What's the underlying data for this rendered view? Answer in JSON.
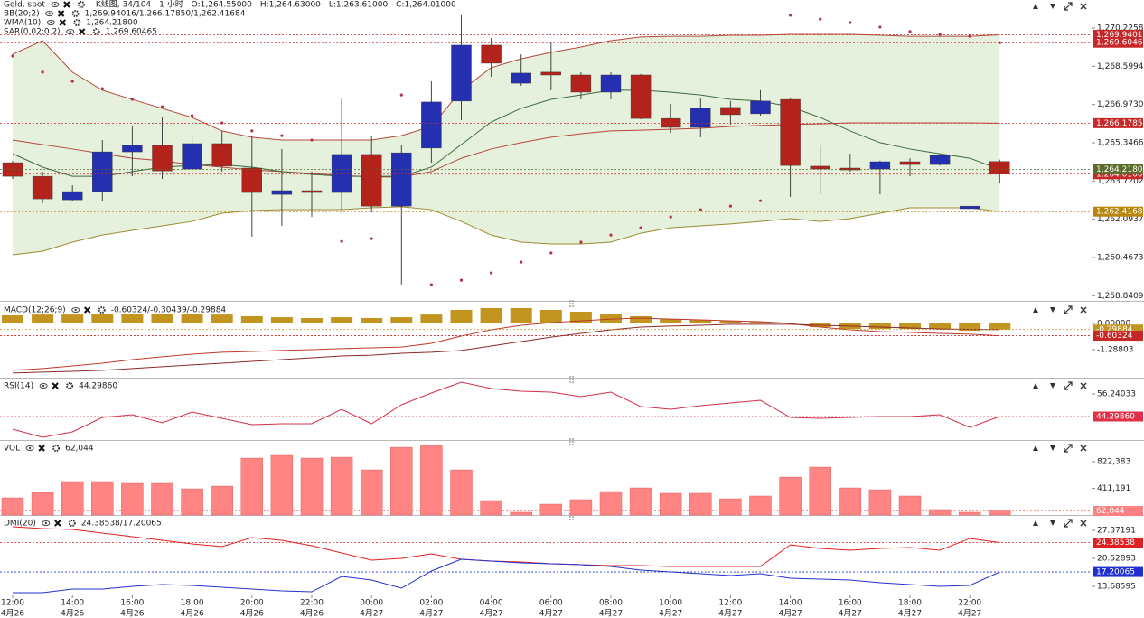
{
  "chart_data": [
    {
      "type": "candlestick",
      "title": "Gold, spot",
      "subtitle": "K线图, 34/104 - 1 小时 - O:1,264.55000 - H:1,264.63000 - L:1,263.61000 - C:1,264.01000",
      "up_color": "#2530b0",
      "down_color": "#b3231c",
      "open": [
        1264.5,
        1263.92,
        1262.92,
        1263.27,
        1264.96,
        1265.23,
        1264.23,
        1265.31,
        1264.27,
        1263.15,
        1263.31,
        1263.23,
        1264.85,
        1262.65,
        1265.12,
        1267.12,
        1269.5,
        1267.88,
        1268.35,
        1268.23,
        1267.5,
        1268.23,
        1266.38,
        1266.0,
        1266.85,
        1266.58,
        1267.19,
        1264.35,
        1264.27,
        1264.23,
        1264.54,
        1264.42,
        1262.54,
        1264.55
      ],
      "high": [
        1264.58,
        1264.12,
        1263.54,
        1265.46,
        1266.04,
        1266.42,
        1265.65,
        1265.85,
        1265.65,
        1265.08,
        1264.12,
        1267.27,
        1265.65,
        1265.27,
        1267.96,
        1270.77,
        1269.81,
        1269.11,
        1269.61,
        1268.35,
        1268.35,
        1268.27,
        1267.0,
        1267.27,
        1267.12,
        1267.58,
        1267.27,
        1265.27,
        1264.88,
        1264.58,
        1264.69,
        1264.88,
        1262.65,
        1264.63
      ],
      "low": [
        1263.81,
        1262.77,
        1262.88,
        1262.88,
        1263.92,
        1263.81,
        1264.12,
        1264.12,
        1261.35,
        1261.81,
        1262.19,
        1262.5,
        1262.38,
        1259.31,
        1264.5,
        1266.31,
        1268.15,
        1267.77,
        1267.58,
        1267.19,
        1267.19,
        1266.35,
        1265.77,
        1265.58,
        1266.12,
        1266.5,
        1263.04,
        1263.15,
        1264.12,
        1263.15,
        1263.92,
        1264.38,
        1262.54,
        1263.61
      ],
      "close": [
        1263.92,
        1262.96,
        1263.27,
        1264.96,
        1265.23,
        1264.15,
        1265.31,
        1264.35,
        1263.23,
        1263.31,
        1263.23,
        1264.85,
        1262.65,
        1264.92,
        1267.08,
        1269.5,
        1268.73,
        1268.31,
        1268.23,
        1267.5,
        1268.23,
        1266.38,
        1266.0,
        1266.81,
        1266.54,
        1267.12,
        1264.38,
        1264.23,
        1264.19,
        1264.54,
        1264.42,
        1264.81,
        1262.65,
        1264.01
      ],
      "ylim": [
        1258.62,
        1271.42
      ],
      "yticks": [
        {
          "value": 1270.22584,
          "label": "1,270.22584"
        },
        {
          "value": 1268.59943,
          "label": "1,268.59943"
        },
        {
          "value": 1266.97302,
          "label": "1,266.97302"
        },
        {
          "value": 1265.34661,
          "label": "1,265.34661"
        },
        {
          "value": 1263.7202,
          "label": "1,263.72020"
        },
        {
          "value": 1262.09379,
          "label": "1,262.09379"
        },
        {
          "value": 1260.46738,
          "label": "1,260.46738"
        },
        {
          "value": 1258.84097,
          "label": "1,258.84097"
        }
      ],
      "indicators": [
        {
          "name": "BB(20;2)",
          "legend": "1,269.94016/1,266.17850/1,262.41684",
          "legend_color": "#c0392b",
          "fill": "#e5f1dd",
          "lines": [
            {
              "color": "#b5473a",
              "values": [
                1269.11,
                1269.69,
                1268.35,
                1267.58,
                1267.19,
                1266.81,
                1266.42,
                1265.85,
                1265.58,
                1265.46,
                1265.46,
                1265.46,
                1265.46,
                1265.65,
                1266.04,
                1267.58,
                1268.54,
                1268.92,
                1269.19,
                1269.42,
                1269.69,
                1269.85,
                1269.88,
                1269.88,
                1269.92,
                1269.92,
                1269.96,
                1269.96,
                1269.96,
                1269.92,
                1269.88,
                1269.88,
                1269.88,
                1269.94016
              ]
            },
            {
              "color": "#b5473a",
              "values": [
                1265.46,
                1265.27,
                1265.08,
                1264.88,
                1264.69,
                1264.58,
                1264.42,
                1264.31,
                1264.19,
                1264.12,
                1264.04,
                1263.96,
                1263.89,
                1263.89,
                1264.12,
                1264.69,
                1265.08,
                1265.35,
                1265.58,
                1265.73,
                1265.85,
                1265.88,
                1265.92,
                1265.96,
                1266.04,
                1266.08,
                1266.12,
                1266.15,
                1266.19,
                1266.19,
                1266.19,
                1266.19,
                1266.19,
                1266.1785
              ]
            },
            {
              "color": "#9a8a30",
              "values": [
                1260.58,
                1260.73,
                1261.12,
                1261.42,
                1261.62,
                1261.81,
                1262.0,
                1262.35,
                1262.46,
                1262.5,
                1262.5,
                1262.5,
                1262.58,
                1262.62,
                1262.5,
                1262.0,
                1261.42,
                1261.12,
                1261.04,
                1261.04,
                1261.12,
                1261.5,
                1261.73,
                1261.81,
                1261.89,
                1262.0,
                1262.12,
                1262.0,
                1262.12,
                1262.35,
                1262.58,
                1262.58,
                1262.58,
                1262.41684
              ]
            }
          ]
        },
        {
          "name": "WMA(10)",
          "legend": "1,264.21800",
          "legend_color": "#c0392b",
          "lines": [
            {
              "color": "#3d6b3d",
              "values": [
                1264.88,
                1264.31,
                1263.92,
                1263.92,
                1264.12,
                1264.31,
                1264.38,
                1264.42,
                1264.31,
                1264.12,
                1264.0,
                1263.92,
                1263.92,
                1263.92,
                1264.31,
                1265.27,
                1266.23,
                1266.81,
                1267.19,
                1267.38,
                1267.58,
                1267.58,
                1267.5,
                1267.38,
                1267.19,
                1267.12,
                1266.88,
                1266.42,
                1265.85,
                1265.35,
                1265.08,
                1264.88,
                1264.69,
                1264.218
              ]
            }
          ]
        },
        {
          "name": "SAR(0.02;0.2)",
          "legend": "1,269.60465",
          "legend_color": "#c0392b",
          "style": "dots",
          "lines": [
            {
              "color": "#b3304a",
              "values": [
                1269.04,
                1268.35,
                1267.96,
                1267.65,
                1267.19,
                1266.88,
                1266.5,
                1266.19,
                1265.85,
                1265.65,
                1265.46,
                1261.15,
                1261.27,
                1267.38,
                1259.31,
                1259.5,
                1259.81,
                1260.27,
                1260.66,
                1261.12,
                1261.42,
                1261.73,
                1262.19,
                1262.5,
                1262.65,
                1262.88,
                1270.77,
                1270.61,
                1270.46,
                1270.27,
                1270.08,
                1269.96,
                1269.88,
                1269.60465
              ]
            }
          ]
        }
      ],
      "price_tags": [
        {
          "value": 1269.94016,
          "label": "1,269.94016",
          "color": "#c62828"
        },
        {
          "value": 1269.60465,
          "label": "1,269.60465",
          "color": "#c62828"
        },
        {
          "value": 1266.1785,
          "label": "1,266.17850",
          "color": "#c62828"
        },
        {
          "value": 1264.01,
          "label": "1,264.01000",
          "color": "#c62828"
        },
        {
          "value": 1264.218,
          "label": "1,264.21800",
          "color": "#5b6b2a"
        },
        {
          "value": 1262.41684,
          "label": "1,262.41684",
          "color": "#b8860b"
        }
      ]
    },
    {
      "type": "macd",
      "title": "MACD(12;26;9)",
      "legend": "-0.60324/-0.30439/-0.29884",
      "legend_color": "#b8860b",
      "ylim": [
        -2.67,
        0.98
      ],
      "yticks": [
        {
          "value": 0,
          "label": "0.00000"
        },
        -1.28803
      ],
      "histogram": {
        "color": "#c1951f",
        "values": [
          0.4,
          0.44,
          0.44,
          0.49,
          0.49,
          0.49,
          0.49,
          0.44,
          0.36,
          0.31,
          0.27,
          0.31,
          0.27,
          0.31,
          0.44,
          0.67,
          0.76,
          0.76,
          0.67,
          0.58,
          0.49,
          0.36,
          0.22,
          0.18,
          0.13,
          0.09,
          0.02,
          -0.18,
          -0.27,
          -0.27,
          -0.27,
          -0.27,
          -0.36,
          -0.29884
        ]
      },
      "series": [
        {
          "color": "#c0392b",
          "values": [
            -2.31,
            -2.22,
            -2.09,
            -1.96,
            -1.78,
            -1.64,
            -1.51,
            -1.42,
            -1.38,
            -1.33,
            -1.29,
            -1.24,
            -1.2,
            -1.16,
            -0.98,
            -0.62,
            -0.31,
            -0.09,
            0.04,
            0.13,
            0.22,
            0.27,
            0.22,
            0.18,
            0.13,
            0.09,
            0.0,
            -0.18,
            -0.31,
            -0.4,
            -0.44,
            -0.49,
            -0.53,
            -0.60324
          ]
        },
        {
          "color": "#8e2a2a",
          "values": [
            -2.44,
            -2.4,
            -2.36,
            -2.31,
            -2.22,
            -2.13,
            -2.04,
            -1.96,
            -1.87,
            -1.78,
            -1.69,
            -1.6,
            -1.56,
            -1.47,
            -1.42,
            -1.33,
            -1.11,
            -0.89,
            -0.67,
            -0.49,
            -0.31,
            -0.18,
            -0.13,
            -0.09,
            -0.04,
            -0.04,
            -0.04,
            -0.09,
            -0.13,
            -0.18,
            -0.22,
            -0.27,
            -0.29,
            -0.30439
          ]
        }
      ],
      "price_tags": [
        {
          "value": -0.29884,
          "label": "-0.29884",
          "color": "#c1951f"
        },
        {
          "value": -0.60324,
          "label": "-0.60324",
          "color": "#c62828"
        }
      ]
    },
    {
      "type": "line",
      "title": "RSI(14)",
      "legend": "44.29860",
      "legend_color": "#d0304a",
      "ylim": [
        31.88,
        63.88
      ],
      "yticks": [
        56.24033
      ],
      "series": [
        {
          "color": "#d0304a",
          "values": [
            37.61,
            33.32,
            36.18,
            43.82,
            45.25,
            40.95,
            46.69,
            43.34,
            40.0,
            40.48,
            40.48,
            48.12,
            40.48,
            50.51,
            56.71,
            62.45,
            59.1,
            57.67,
            57.19,
            54.8,
            57.19,
            49.55,
            48.12,
            50.03,
            51.46,
            52.89,
            43.82,
            43.34,
            43.82,
            44.3,
            44.3,
            45.25,
            38.57,
            44.2986
          ]
        }
      ],
      "price_tags": [
        {
          "value": 44.2986,
          "label": "44.29860",
          "color": "#e0304a"
        }
      ]
    },
    {
      "type": "bar",
      "title": "VOL",
      "legend": "62,044",
      "legend_color": "#f0a0a0",
      "ylim": [
        0,
        1130000
      ],
      "yticks": [
        {
          "value": 822383,
          "label": "822,383"
        },
        {
          "value": 411191,
          "label": "411,191"
        }
      ],
      "color": "#ff8585",
      "values": [
        265000,
        348000,
        516000,
        516000,
        488000,
        488000,
        404000,
        446000,
        878000,
        920000,
        878000,
        892000,
        697000,
        1045000,
        1073000,
        697000,
        223000,
        42000,
        167000,
        237000,
        362000,
        418000,
        335000,
        335000,
        251000,
        293000,
        585000,
        739000,
        418000,
        390000,
        293000,
        84000,
        42000,
        62044
      ],
      "price_tags": [
        {
          "value": 62044,
          "label": "62,044",
          "color": "#ff8080"
        }
      ]
    },
    {
      "type": "line",
      "title": "DMI(20)",
      "legend": "24.38538/17.20065",
      "legend_color": "#d02020",
      "ylim": [
        11.7,
        30.68
      ],
      "yticks": [
        27.37191,
        20.52893,
        13.68595
      ],
      "series": [
        {
          "color": "#e02020",
          "values": [
            28.25,
            27.81,
            27.59,
            26.71,
            25.83,
            24.94,
            24.06,
            23.4,
            25.61,
            24.94,
            23.62,
            21.85,
            20.09,
            20.53,
            21.63,
            20.31,
            19.87,
            19.65,
            19.21,
            18.98,
            18.76,
            18.76,
            18.54,
            18.54,
            18.54,
            18.54,
            23.84,
            22.96,
            22.52,
            22.96,
            23.18,
            22.52,
            25.39,
            24.38538
          ]
        },
        {
          "color": "#2030d0",
          "values": [
            12.14,
            12.14,
            13.02,
            13.02,
            13.69,
            14.13,
            13.91,
            13.46,
            13.02,
            12.58,
            12.36,
            16.11,
            15.23,
            13.24,
            17.44,
            20.31,
            19.87,
            19.43,
            19.21,
            18.98,
            18.54,
            17.66,
            17.22,
            16.77,
            16.33,
            16.77,
            15.67,
            15.45,
            15.23,
            14.56,
            14.13,
            13.69,
            13.91,
            17.20065
          ]
        }
      ],
      "price_tags": [
        {
          "value": 24.38538,
          "label": "24.38538",
          "color": "#e02020"
        },
        {
          "value": 17.20065,
          "label": "17.20065",
          "color": "#2030d0"
        }
      ],
      "categories": [
        "12:00",
        null,
        "14:00",
        null,
        "16:00",
        null,
        "18:00",
        null,
        "20:00",
        null,
        "22:00",
        null,
        "00:00",
        null,
        "02:00",
        null,
        "04:00",
        null,
        "06:00",
        null,
        "08:00",
        null,
        "10:00",
        null,
        "12:00",
        null,
        "14:00",
        null,
        "16:00",
        null,
        "18:00",
        null,
        "22:00",
        null
      ],
      "dates": [
        "4月26",
        null,
        "4月26",
        null,
        "4月26",
        null,
        "4月26",
        null,
        "4月26",
        null,
        "4月26",
        null,
        "4月27",
        null,
        "4月27",
        null,
        "4月27",
        null,
        "4月27",
        null,
        "4月27",
        null,
        "4月27",
        null,
        "4月27",
        null,
        "4月27",
        null,
        "4月27",
        null,
        "4月27",
        null,
        "4月27",
        null
      ]
    }
  ]
}
